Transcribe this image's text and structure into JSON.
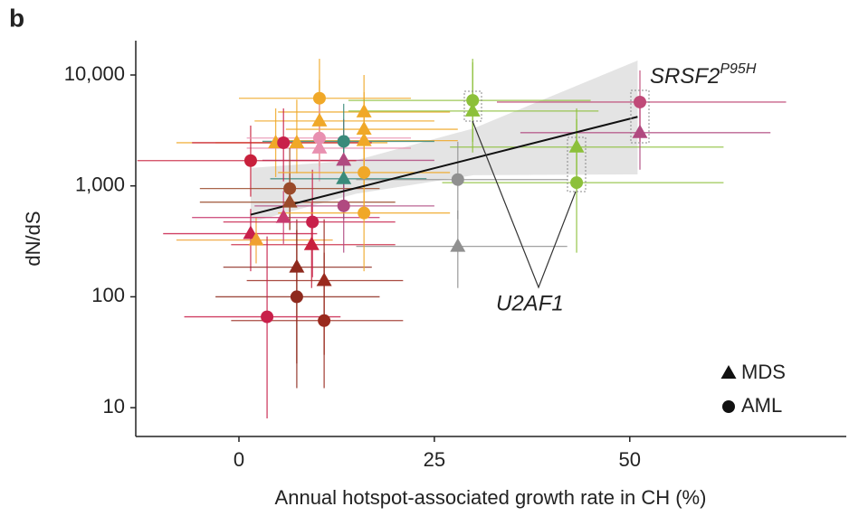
{
  "chart_data": {
    "type": "scatter",
    "panel_label": "b",
    "x_label": "Annual hotspot-associated growth rate in CH (%)",
    "y_label": "dN/dS",
    "xlim": [
      -13.2,
      77.7
    ],
    "ylim": [
      5.5,
      20400
    ],
    "log_y": true,
    "xticks": [
      0,
      25,
      50
    ],
    "yticks": [
      10,
      100,
      {
        "value": 1000,
        "label": "1,000"
      },
      {
        "value": 10000,
        "label": "10,000"
      }
    ],
    "legend": "lower right",
    "series": [
      {
        "name": "MDS",
        "marker": "triangle",
        "color": "#111111",
        "x": [
          1.5,
          2.2,
          5.7,
          6.5,
          7.4,
          9.3,
          10.9,
          7.4,
          4.7,
          10.3,
          10.3,
          13.4,
          13.4,
          16,
          16,
          16,
          28,
          29.9,
          43.2,
          51.3
        ],
        "values": [
          371,
          325,
          519,
          714,
          185,
          295,
          140,
          2450,
          2450,
          2190,
          3850,
          1700,
          1160,
          4640,
          3240,
          2560,
          285,
          4730,
          2240,
          3020
        ],
        "x_low": [
          -9.7,
          -8,
          -6,
          -5,
          -2,
          -1,
          1,
          -3,
          -8,
          1,
          2,
          3,
          4,
          5,
          6,
          6,
          15,
          14,
          27,
          36
        ],
        "x_high": [
          10,
          12,
          18,
          20,
          17,
          20,
          21,
          19,
          17,
          22,
          25,
          25,
          24,
          27,
          28,
          28,
          42,
          46,
          62,
          68
        ],
        "y_low": [
          170,
          200,
          300,
          400,
          25,
          120,
          30,
          1300,
          1200,
          1100,
          1500,
          700,
          500,
          2000,
          1500,
          1000,
          120,
          2000,
          900,
          1400
        ],
        "y_high": [
          620,
          520,
          900,
          1300,
          500,
          700,
          500,
          6000,
          5000,
          5000,
          9000,
          4000,
          2500,
          10000,
          7000,
          6000,
          600,
          13000,
          5000,
          6500
        ],
        "colors": [
          "#c8204a",
          "#f0a030",
          "#c83a6e",
          "#9a4a2a",
          "#8e2a1e",
          "#c8203c",
          "#9a2a1e",
          "#f0a828",
          "#f0a828",
          "#e890b0",
          "#f0a828",
          "#b04a80",
          "#3a8a7a",
          "#f0a828",
          "#f0a828",
          "#f0a828",
          "#909090",
          "#8cc03a",
          "#8cc03a",
          "#b04a80"
        ]
      },
      {
        "name": "AML",
        "marker": "circle",
        "color": "#111111",
        "x": [
          1.5,
          5.7,
          6.5,
          9.4,
          7.4,
          3.6,
          10.9,
          10.3,
          10.3,
          13.4,
          13.4,
          16,
          16,
          28,
          29.9,
          43.2,
          51.3
        ],
        "values": [
          1690,
          2450,
          947,
          473,
          100,
          66,
          61,
          6170,
          2700,
          2520,
          660,
          1320,
          570,
          1140,
          5900,
          1070,
          5700
        ],
        "x_low": [
          -13,
          -6,
          -5,
          -2,
          -3,
          -7,
          -1,
          0,
          1,
          3,
          2,
          5,
          5,
          15,
          14,
          26,
          33
        ],
        "x_high": [
          15,
          17,
          18,
          20,
          18,
          13,
          21,
          22,
          22,
          25,
          25,
          27,
          27,
          42,
          45,
          62,
          70
        ],
        "y_low": [
          800,
          1100,
          400,
          150,
          15,
          8,
          15,
          2500,
          1300,
          1200,
          250,
          600,
          170,
          500,
          2500,
          250,
          2500
        ],
        "y_high": [
          3500,
          5000,
          2200,
          1400,
          400,
          350,
          250,
          14000,
          6000,
          5500,
          1800,
          3000,
          1800,
          2500,
          14000,
          4000,
          11000
        ],
        "colors": [
          "#c8203c",
          "#c8204a",
          "#9a4a2a",
          "#c8204a",
          "#8e2a1e",
          "#c8204a",
          "#9a2a1e",
          "#f0a828",
          "#e890b0",
          "#3a8a7a",
          "#b04a80",
          "#f0a828",
          "#f0a828",
          "#909090",
          "#8cc03a",
          "#8cc03a",
          "#c04a78"
        ]
      }
    ],
    "trend": {
      "x": [
        1.5,
        51
      ],
      "values": [
        550,
        4200
      ]
    },
    "band": {
      "x": [
        1.5,
        15,
        30,
        51
      ],
      "lower": [
        470,
        850,
        1250,
        1270
      ],
      "upper": [
        1450,
        1700,
        3300,
        13500
      ]
    },
    "annotations": {
      "srsf2": "SRSF2",
      "srsf2_sup": "P95H",
      "u2af1": "U2AF1"
    }
  }
}
